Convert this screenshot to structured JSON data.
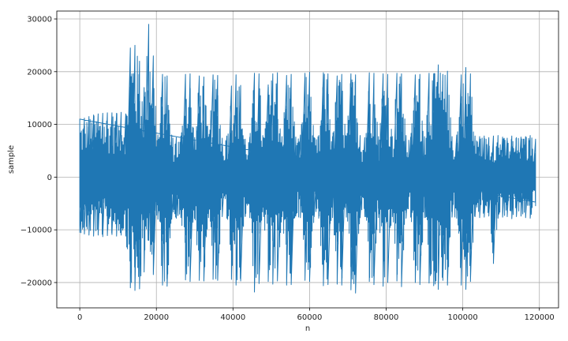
{
  "chart_data": {
    "type": "line",
    "title": "",
    "xlabel": "n",
    "ylabel": "sample",
    "xlim": [
      -6000,
      125000
    ],
    "ylim": [
      -24800,
      31500
    ],
    "grid": true,
    "x_ticks": [
      0,
      20000,
      40000,
      60000,
      80000,
      100000,
      120000
    ],
    "y_ticks": [
      -20000,
      -10000,
      0,
      10000,
      20000,
      30000
    ],
    "x_tick_labels": [
      "0",
      "20000",
      "40000",
      "60000",
      "80000",
      "100000",
      "120000"
    ],
    "y_tick_labels": [
      "−20000",
      "−10000",
      "0",
      "10000",
      "20000",
      "30000"
    ],
    "series": [
      {
        "name": "",
        "color": "#1f77b4",
        "x_start": 0,
        "x_end": 119000,
        "envelope": {
          "columns": [
            0,
            1200,
            2400,
            3600,
            4800,
            6000,
            7200,
            8400,
            9600,
            10800,
            12000,
            13200,
            14400,
            15600,
            16800,
            18000,
            19200,
            20400,
            21600,
            22800,
            24000,
            25200,
            26400,
            27600,
            28800,
            30000,
            31200,
            32400,
            33600,
            34800,
            36000,
            37200,
            38400,
            39600,
            40800,
            42000,
            43200,
            44400,
            45600,
            46800,
            48000,
            49200,
            50400,
            51600,
            52800,
            54000,
            55200,
            56400,
            57600,
            58800,
            60000,
            61200,
            62400,
            63600,
            64800,
            66000,
            67200,
            68400,
            69600,
            70800,
            72000,
            73200,
            74400,
            75600,
            76800,
            78000,
            79200,
            80400,
            81600,
            82800,
            84000,
            85200,
            86400,
            87600,
            88800,
            90000,
            91200,
            92400,
            93600,
            94800,
            96000,
            97200,
            98400,
            99600,
            100800,
            102000,
            103200,
            104400,
            105600,
            106800,
            108000,
            109200,
            110400,
            111600,
            112800,
            114000,
            115200,
            116400,
            117600,
            119000
          ],
          "max": [
            11000,
            11200,
            11500,
            11800,
            12000,
            12100,
            12200,
            12200,
            12100,
            12300,
            12000,
            24500,
            25000,
            22000,
            17000,
            29000,
            23000,
            8000,
            19500,
            19200,
            8000,
            7500,
            7800,
            19500,
            19600,
            7500,
            19200,
            19000,
            7600,
            19400,
            19300,
            7400,
            7800,
            17300,
            19400,
            17400,
            7200,
            7600,
            19700,
            19600,
            7500,
            17500,
            19600,
            19800,
            7700,
            19300,
            19500,
            7600,
            8000,
            19700,
            19900,
            7500,
            7900,
            19800,
            19600,
            7700,
            19200,
            19500,
            7800,
            19600,
            19400,
            7900,
            7500,
            19800,
            19700,
            7700,
            19600,
            19500,
            7700,
            19700,
            19600,
            7900,
            7600,
            19400,
            19500,
            7700,
            19700,
            19600,
            21300,
            19500,
            20100,
            7700,
            8000,
            19400,
            20800,
            19600,
            7800,
            7700,
            7800,
            7500,
            7800,
            7900,
            7600,
            7400,
            7800,
            7500,
            7600,
            7700,
            7900,
            7200
          ],
          "min": [
            -10500,
            -10800,
            -11000,
            -11200,
            -11000,
            -11300,
            -11100,
            -10900,
            -11200,
            -11000,
            -11200,
            -21000,
            -21500,
            -21200,
            -18000,
            -12000,
            -18500,
            -8000,
            -20500,
            -20700,
            -8000,
            -7800,
            -7700,
            -19500,
            -19800,
            -7600,
            -19600,
            -19700,
            -7700,
            -19400,
            -19600,
            -7500,
            -7800,
            -19400,
            -20500,
            -19700,
            -7500,
            -7700,
            -21800,
            -20200,
            -7500,
            -19800,
            -20300,
            -19700,
            -7500,
            -20500,
            -20400,
            -7400,
            -7700,
            -19600,
            -19800,
            -7500,
            -7800,
            -20600,
            -20400,
            -7700,
            -20300,
            -20500,
            -7600,
            -21400,
            -22000,
            -7700,
            -7500,
            -19800,
            -20400,
            -7700,
            -20700,
            -20000,
            -7500,
            -19700,
            -20800,
            -7800,
            -7600,
            -20000,
            -20400,
            -7700,
            -20100,
            -20600,
            -21300,
            -19600,
            -20500,
            -7600,
            -7800,
            -20500,
            -21300,
            -19800,
            -7500,
            -7700,
            -7600,
            -7400,
            -16400,
            -7800,
            -7600,
            -7500,
            -7900,
            -7500,
            -7400,
            -7700,
            -7800,
            -5500
          ]
        }
      }
    ]
  }
}
